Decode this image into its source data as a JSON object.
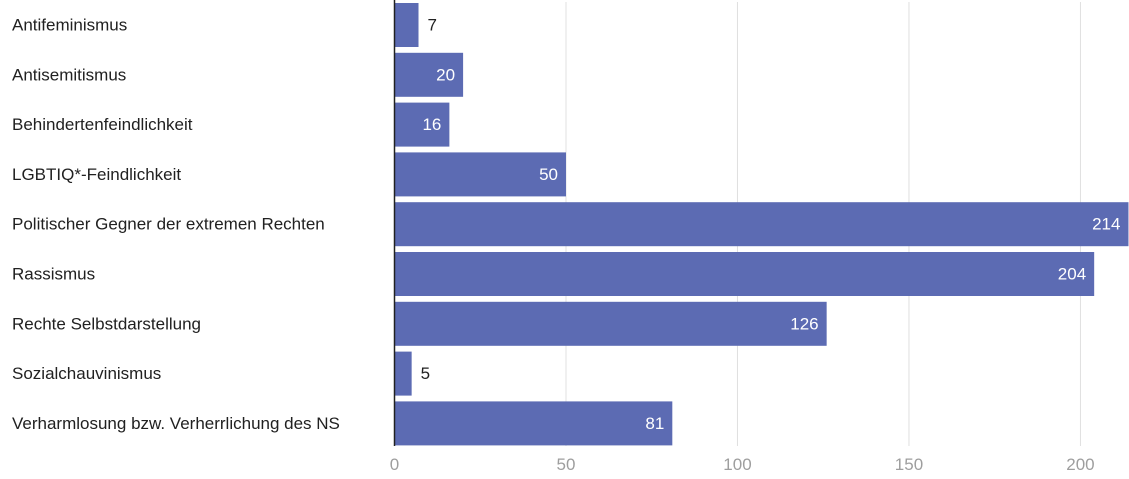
{
  "chart_data": {
    "type": "bar",
    "orientation": "horizontal",
    "categories": [
      "Antifeminismus",
      "Antisemitismus",
      "Behindertenfeindlichkeit",
      "LGBTIQ*-Feindlichkeit",
      "Politischer Gegner der extremen Rechten",
      "Rassismus",
      "Rechte Selbstdarstellung",
      "Sozialchauvinismus",
      "Verharmlosung bzw. Verherrlichung des NS"
    ],
    "values": [
      7,
      20,
      16,
      50,
      214,
      204,
      126,
      5,
      81
    ],
    "data_labels": [
      "7",
      "20",
      "16",
      "50",
      "214",
      "204",
      "126",
      "5",
      "81"
    ],
    "xlim": [
      0,
      214
    ],
    "xticks": [
      0,
      50,
      100,
      150,
      200
    ],
    "xtick_labels": [
      "0",
      "50",
      "100",
      "150",
      "200"
    ],
    "grid": "vertical",
    "legend": "none",
    "colors": {
      "bar": "#5c6bb3",
      "grid": "#e0e0e0",
      "axis": "#212121",
      "tick_text": "#9e9e9e",
      "label_text": "#212121",
      "value_inside_text": "#ffffff"
    }
  }
}
